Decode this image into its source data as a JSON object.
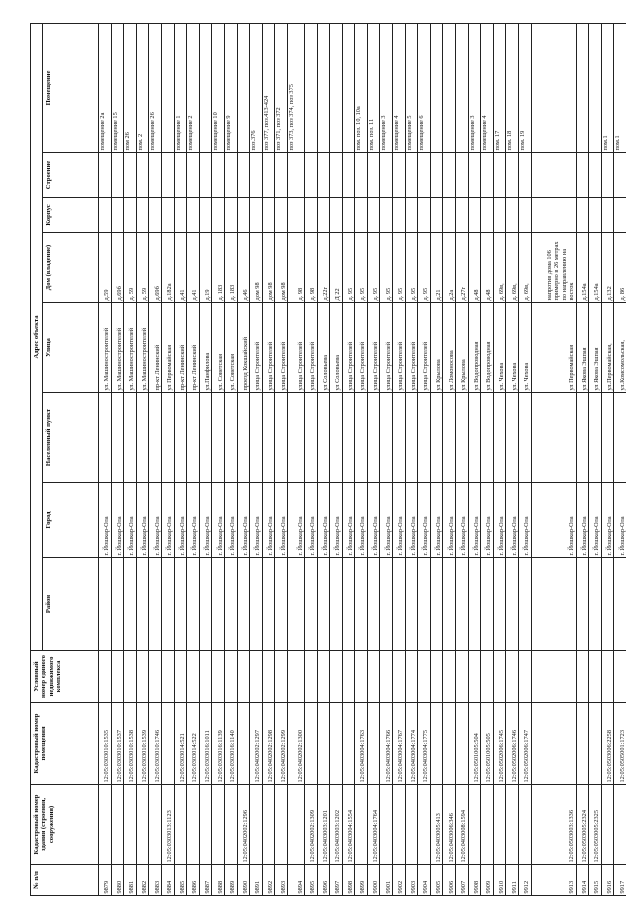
{
  "headers": {
    "num": "№ п/п",
    "cad_building": "Кадастровый номер здания (строения, сооружения)",
    "cad_room": "Кадастровый номер помещения",
    "cond_num": "Условный номер единого недвижимого комплекса",
    "address_group": "Адрес объекта",
    "district": "Район",
    "city": "Город",
    "settlement": "Населенный пункт",
    "street": "Улица",
    "house": "Дом (владение)",
    "korpus": "Корпус",
    "building": "Строение",
    "room": "Помещение"
  },
  "rows": [
    {
      "num": "9879",
      "cb": "",
      "cr": "12:05:0303010:1535",
      "city": "г. Йошкар-Ола",
      "street": "ул. Машиностроителей",
      "house": "д.59",
      "room": "помещение 2а"
    },
    {
      "num": "9880",
      "cb": "",
      "cr": "12:05:0303010:1537",
      "city": "г. Йошкар-Ола",
      "street": "ул. Машиностроителей",
      "house": "д.69б",
      "room": "помещение 15"
    },
    {
      "num": "9881",
      "cb": "",
      "cr": "12:05:0303010:1538",
      "city": "г. Йошкар-Ола",
      "street": "ул. Машиностроителей",
      "house": "д. 59",
      "room": "пом 26"
    },
    {
      "num": "9882",
      "cb": "",
      "cr": "12:05:0303010:1539",
      "city": "г. Йошкар-Ола",
      "street": "ул. Машиностроителей",
      "house": "д. 59",
      "room": "пом. 2"
    },
    {
      "num": "9883",
      "cb": "",
      "cr": "12:05:0303010:1746",
      "city": "г. Йошкар-Ола",
      "street": "пр-кт Ленинский",
      "house": "д.69б",
      "room": "помещение 26"
    },
    {
      "num": "9884",
      "cb": "12:05:0303013:1123",
      "cr": "",
      "city": "г. Йошкар-Ола",
      "street": "ул Первомайская",
      "house": "д.182а",
      "room": ""
    },
    {
      "num": "9885",
      "cb": "",
      "cr": "12:05:0303014:521",
      "city": "г. Йошкар-Ола",
      "street": "пр-кт Ленинский",
      "house": "д.41",
      "room": "помещение 1"
    },
    {
      "num": "9886",
      "cb": "",
      "cr": "12:05:0303014:522",
      "city": "г. Йошкар-Ола",
      "street": "пр-кт Ленинский",
      "house": "д.41",
      "room": "помещение 2"
    },
    {
      "num": "9887",
      "cb": "",
      "cr": "12:05:0303016:1011",
      "city": "г. Йошкар-Ола",
      "street": "ул.Панфилова",
      "house": "д.19",
      "room": ""
    },
    {
      "num": "9888",
      "cb": "",
      "cr": "12:05:0303016:1139",
      "city": "г. Йошкар-Ола",
      "street": "ул. Советская",
      "house": "д. 183",
      "room": "помещение 10"
    },
    {
      "num": "9889",
      "cb": "",
      "cr": "12:05:0303016:1140",
      "city": "г. Йошкар-Ола",
      "street": "ул. Советская",
      "house": "д. 183",
      "room": "помещение 9"
    },
    {
      "num": "9890",
      "cb": "12:05:0402002:1296",
      "cr": "",
      "city": "г. Йошкар-Ола",
      "street": "проезд Кокшайский",
      "house": "д.46",
      "room": ""
    },
    {
      "num": "9891",
      "cb": "",
      "cr": "12:05:0402002:1297",
      "city": "г. Йошкар-Ола",
      "street": "улица Строителей",
      "house": "дом 98",
      "room": "поз.376"
    },
    {
      "num": "9892",
      "cb": "",
      "cr": "12:05:0402002:1298",
      "city": "г. Йошкар-Ола",
      "street": "улица Строителей",
      "house": "дом 98",
      "room": "поз 377, поз.413-424"
    },
    {
      "num": "9893",
      "cb": "",
      "cr": "12:05:0402002:1299",
      "city": "г. Йошкар-Ола",
      "street": "улица Строителей",
      "house": "дом 98",
      "room": "поз 371, поз 372"
    },
    {
      "num": "9894",
      "cb": "",
      "cr": "12:05:0402002:1300",
      "city": "г. Йошкар-Ола",
      "street": "улица Строителей",
      "house": "д. 98",
      "room": "поз 373, поз 374, поз 375",
      "cls": "mid"
    },
    {
      "num": "9895",
      "cb": "12:05:0402002:1309",
      "cr": "",
      "city": "г. Йошкар-Ола",
      "street": "улица Строителей",
      "house": "д. 98",
      "room": ""
    },
    {
      "num": "9896",
      "cb": "12:05:0403003:1201",
      "cr": "",
      "city": "г. Йошкар-Ола",
      "street": "ул Соловьева",
      "house": "д.22г",
      "room": ""
    },
    {
      "num": "9897",
      "cb": "12:05:0403003:1202",
      "cr": "",
      "city": "г. Йошкар-Ола",
      "street": "ул Соловьева",
      "house": "Д 22",
      "room": ""
    },
    {
      "num": "9898",
      "cb": "12:05:0403004:1554",
      "cr": "",
      "city": "г. Йошкар-Ола",
      "street": "улица Строителей",
      "house": "д. 95",
      "room": ""
    },
    {
      "num": "9899",
      "cb": "",
      "cr": "12:05:0403004:1763",
      "city": "г. Йошкар-Ола",
      "street": "улица Строителей",
      "house": "д. 95",
      "room": "пом. поз. 10, 10а"
    },
    {
      "num": "9900",
      "cb": "12:05:0403004:1764",
      "cr": "",
      "city": "г. Йошкар-Ола",
      "street": "улица Строителей",
      "house": "д. 95",
      "room": "пом. поз. 11"
    },
    {
      "num": "9901",
      "cb": "",
      "cr": "12:05:0403004:1766",
      "city": "г. Йошкар-Ола",
      "street": "улица Строителей",
      "house": "д. 95",
      "room": "помещение 3"
    },
    {
      "num": "9902",
      "cb": "",
      "cr": "12:05:0403004:1767",
      "city": "г. Йошкар-Ола",
      "street": "улица Строителей",
      "house": "д. 95",
      "room": "помещение 4"
    },
    {
      "num": "9903",
      "cb": "",
      "cr": "12:05:0403004:1774",
      "city": "г. Йошкар-Ола",
      "street": "улица Строителей",
      "house": "д. 95",
      "room": "помещение 5"
    },
    {
      "num": "9904",
      "cb": "",
      "cr": "12:05:0403004:1775",
      "city": "г. Йошкар-Ола",
      "street": "улица Строителей",
      "house": "д. 95",
      "room": "помещение 6"
    },
    {
      "num": "9905",
      "cb": "12:05:0403005:413",
      "cr": "",
      "city": "г. Йошкар-Ола",
      "street": "ул Крылова",
      "house": "д.21",
      "room": ""
    },
    {
      "num": "9906",
      "cb": "12:05:0403006:346",
      "cr": "",
      "city": "г. Йошкар-Ола",
      "street": "ул Ломоносова",
      "house": "д.2а",
      "room": ""
    },
    {
      "num": "9907",
      "cb": "12:05:0403008:1594",
      "cr": "",
      "city": "г. Йошкар-Ола",
      "street": "ул Крылова",
      "house": "д.27г",
      "room": ""
    },
    {
      "num": "9908",
      "cb": "",
      "cr": "12:05:0501005:504",
      "city": "г. Йошкар-Ола",
      "street": "ул Водопроводная",
      "house": "д.48",
      "room": "помещение 3"
    },
    {
      "num": "9909",
      "cb": "",
      "cr": "12:05:0501005:505",
      "city": "г. Йошкар-Ола",
      "street": "ул Водопроводная",
      "house": "д.48",
      "room": "помещение 4"
    },
    {
      "num": "9910",
      "cb": "",
      "cr": "12:05:0502006:1745",
      "city": "г. Йошкар-Ола",
      "street": "ул. Чехова",
      "house": "д. 69в,",
      "room": "пом. 17"
    },
    {
      "num": "9911",
      "cb": "",
      "cr": "12:05:0502006:1746",
      "city": "г. Йошкар-Ола",
      "street": "ул. Чехова",
      "house": "д. 69в,",
      "room": "пом. 18"
    },
    {
      "num": "9912",
      "cb": "",
      "cr": "12:05:0502006:1747",
      "city": "г. Йошкар-Ола",
      "street": "ул. Чехова",
      "house": "д. 69в,",
      "room": "пом. 19"
    },
    {
      "num": "9913",
      "cb": "12:05:0503003:1336",
      "cr": "",
      "city": "г. Йошкар-Ола",
      "street": "ул Первомайская",
      "house": "напротив дома 106 примерно в 26 метрах по направлению на восток",
      "room": "",
      "cls": "tall"
    },
    {
      "num": "9914",
      "cb": "12:05:0503005:2324",
      "cr": "",
      "city": "г. Йошкар-Ола",
      "street": "ул Якова Эшпая",
      "house": "д.154а",
      "room": ""
    },
    {
      "num": "9915",
      "cb": "12:05:0503005:2325",
      "cr": "",
      "city": "г. Йошкар-Ола",
      "street": "ул Якова Эшпая",
      "house": "д.154а",
      "room": ""
    },
    {
      "num": "9916",
      "cb": "",
      "cr": "12:05:0503006:2258",
      "city": "г. Йошкар-Ола",
      "street": "ул.Первомайская,",
      "house": "д.132",
      "room": "пом.1"
    },
    {
      "num": "9917",
      "cb": "",
      "cr": "12:05:0505001:1723",
      "city": "г. Йошкар-Ола",
      "street": "ул.Комсомольская,",
      "house": "д. 86",
      "room": "пом.1"
    }
  ]
}
